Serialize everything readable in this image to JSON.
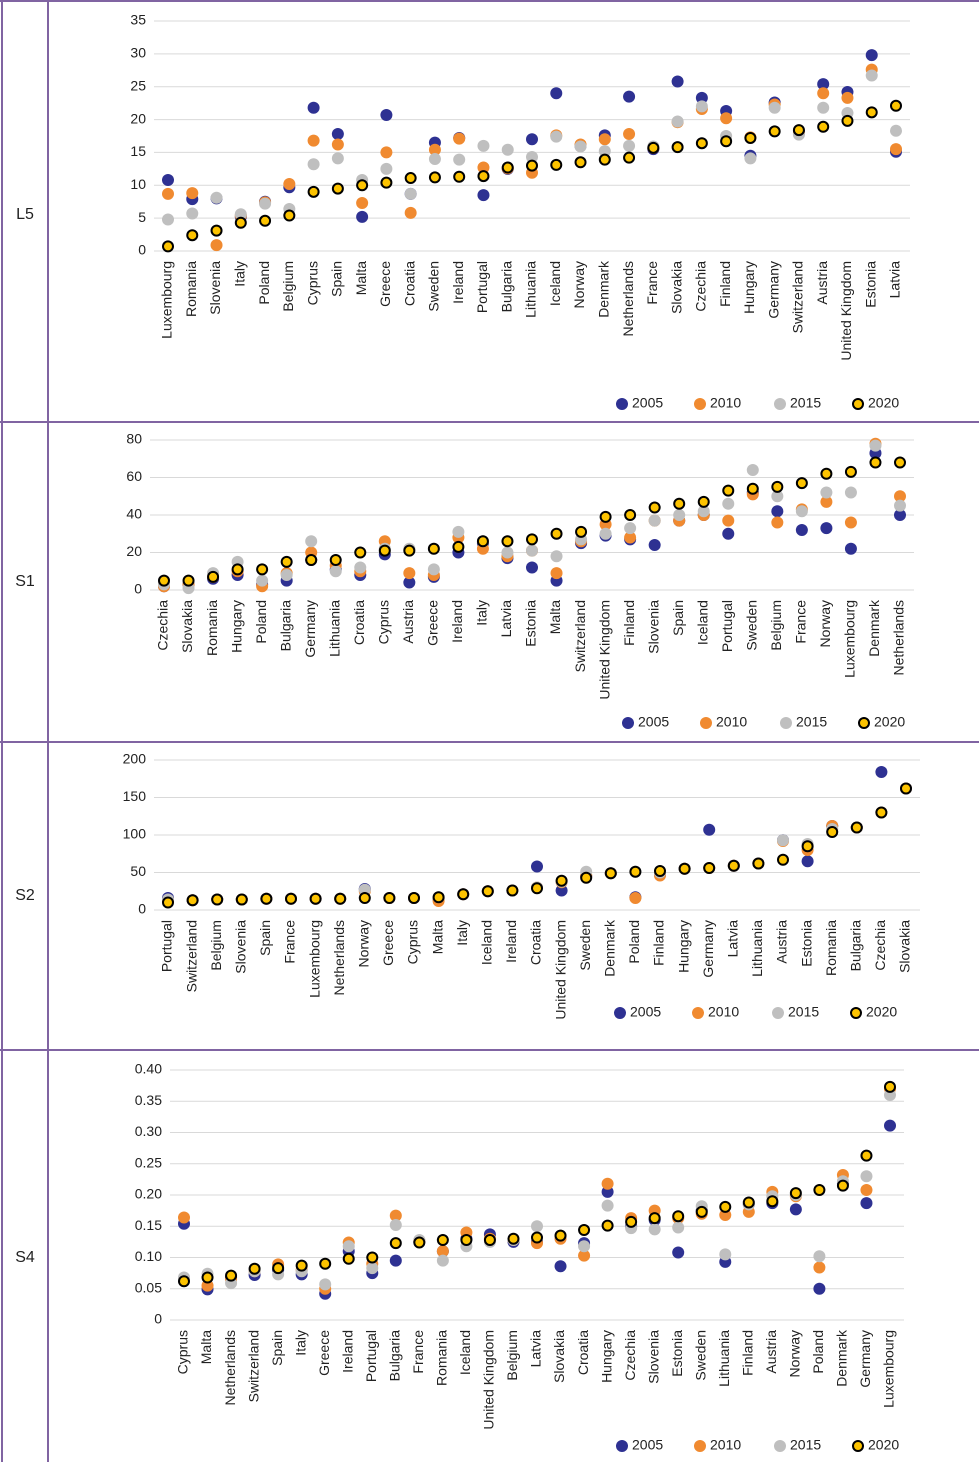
{
  "row_labels": [
    "L5",
    "S1",
    "S2",
    "S4"
  ],
  "chart_data": [
    {
      "type": "dot",
      "categories": [
        "Luxembourg",
        "Romania",
        "Slovenia",
        "Italy",
        "Poland",
        "Belgium",
        "Cyprus",
        "Spain",
        "Malta",
        "Greece",
        "Croatia",
        "Sweden",
        "Ireland",
        "Portugal",
        "Bulgaria",
        "Lithuania",
        "Iceland",
        "Norway",
        "Denmark",
        "Netherlands",
        "France",
        "Slovakia",
        "Czechia",
        "Finland",
        "Hungary",
        "Germany",
        "Switzerland",
        "Austria",
        "United Kingdom",
        "Estonia",
        "Latvia"
      ],
      "series": [
        {
          "name": "2005",
          "color": "#2e3192",
          "values": [
            10.8,
            7.9,
            8.0,
            5.2,
            7.5,
            9.7,
            21.8,
            17.8,
            5.2,
            20.7,
            8.7,
            16.5,
            17.2,
            8.5,
            12.5,
            17.0,
            24.0,
            16.0,
            17.6,
            23.5,
            15.5,
            25.8,
            23.3,
            21.3,
            14.5,
            22.6,
            18.3,
            25.4,
            24.2,
            29.8,
            15.1
          ]
        },
        {
          "name": "2010",
          "color": "#f08a30",
          "values": [
            8.7,
            8.8,
            0.9,
            5.4,
            7.4,
            10.2,
            16.8,
            16.2,
            7.3,
            15.0,
            5.8,
            15.4,
            17.1,
            12.7,
            12.6,
            11.9,
            17.6,
            16.2,
            17.0,
            17.8,
            15.7,
            19.6,
            21.6,
            20.2,
            17.3,
            22.3,
            17.9,
            24.0,
            23.3,
            27.6,
            15.5
          ]
        },
        {
          "name": "2015",
          "color": "#bfbfbf",
          "values": [
            4.8,
            5.7,
            8.1,
            5.6,
            7.2,
            6.4,
            13.2,
            14.1,
            10.8,
            12.5,
            8.7,
            14.0,
            13.9,
            16.0,
            15.4,
            14.3,
            17.4,
            15.9,
            15.2,
            16.0,
            15.9,
            19.7,
            22.0,
            17.5,
            14.1,
            21.8,
            17.7,
            21.8,
            21.0,
            26.7,
            18.3
          ]
        },
        {
          "name": "2020",
          "color": "#fdc300",
          "edgecolor": "#000000",
          "values": [
            0.7,
            2.4,
            3.1,
            4.3,
            4.6,
            5.4,
            9.0,
            9.5,
            10.0,
            10.4,
            11.1,
            11.2,
            11.3,
            11.4,
            12.7,
            13.0,
            13.1,
            13.5,
            13.9,
            14.2,
            15.7,
            15.8,
            16.4,
            16.7,
            17.2,
            18.2,
            18.4,
            18.9,
            19.8,
            21.1,
            22.1
          ]
        }
      ],
      "ylim": [
        0,
        35
      ],
      "yticks": [
        0,
        5,
        10,
        15,
        20,
        25,
        30,
        35
      ],
      "grid": true
    },
    {
      "type": "dot",
      "categories": [
        "Czechia",
        "Slovakia",
        "Romania",
        "Hungary",
        "Poland",
        "Bulgaria",
        "Germany",
        "Lithuania",
        "Croatia",
        "Cyprus",
        "Austria",
        "Greece",
        "Ireland",
        "Italy",
        "Latvia",
        "Estonia",
        "Malta",
        "Switzerland",
        "United Kingdom",
        "Finland",
        "Slovenia",
        "Spain",
        "Iceland",
        "Portugal",
        "Sweden",
        "Belgium",
        "France",
        "Norway",
        "Luxembourg",
        "Denmark",
        "Netherlands"
      ],
      "series": [
        {
          "name": "2005",
          "color": "#2e3192",
          "values": [
            2,
            3,
            6,
            8,
            3,
            5,
            16,
            11,
            8,
            19,
            4,
            7,
            20,
            25,
            17,
            12,
            5,
            25,
            29,
            27,
            24,
            37,
            40,
            30,
            52,
            42,
            32,
            33,
            22,
            73,
            40
          ]
        },
        {
          "name": "2010",
          "color": "#f08a30",
          "values": [
            2,
            3,
            7,
            10,
            2,
            9,
            20,
            13,
            10,
            26,
            9,
            8,
            28,
            22,
            18,
            21,
            9,
            26,
            35,
            28,
            37,
            37,
            40,
            37,
            51,
            36,
            43,
            47,
            36,
            78,
            50
          ]
        },
        {
          "name": "2015",
          "color": "#bfbfbf",
          "values": [
            3,
            1,
            9,
            15,
            5,
            8,
            26,
            10,
            12,
            22,
            22,
            11,
            31,
            26,
            20,
            21,
            18,
            27,
            30,
            33,
            37,
            40,
            42,
            46,
            64,
            50,
            42,
            52,
            52,
            77,
            45
          ]
        },
        {
          "name": "2020",
          "color": "#fdc300",
          "edgecolor": "#000000",
          "values": [
            5,
            5,
            7,
            11,
            11,
            15,
            16,
            16,
            20,
            21,
            21,
            22,
            23,
            26,
            26,
            27,
            30,
            31,
            39,
            40,
            44,
            46,
            47,
            53,
            54,
            55,
            57,
            62,
            63,
            68,
            68
          ]
        }
      ],
      "ylim": [
        0,
        80
      ],
      "yticks": [
        0,
        20,
        40,
        60,
        80
      ],
      "grid": true
    },
    {
      "type": "dot",
      "categories": [
        "Portugal",
        "Switzerland",
        "Belgium",
        "Slovenia",
        "Spain",
        "France",
        "Luxembourg",
        "Netherlands",
        "Norway",
        "Greece",
        "Cyprus",
        "Malta",
        "Italy",
        "Iceland",
        "Ireland",
        "Croatia",
        "United Kingdom",
        "Sweden",
        "Denmark",
        "Poland",
        "Finland",
        "Hungary",
        "Germany",
        "Latvia",
        "Lithuania",
        "Austria",
        "Estonia",
        "Romania",
        "Bulgaria",
        "Czechia",
        "Slovakia"
      ],
      "series": [
        {
          "name": "2005",
          "color": "#2e3192",
          "values": [
            16,
            13,
            14,
            14,
            15,
            15,
            15,
            15,
            28,
            16,
            16,
            15,
            21,
            25,
            26,
            58,
            26,
            45,
            49,
            17,
            47,
            55,
            107,
            59,
            62,
            93,
            65,
            112,
            110,
            184,
            162
          ]
        },
        {
          "name": "2010",
          "color": "#f08a30",
          "values": [
            13,
            13,
            14,
            14,
            15,
            15,
            15,
            15,
            25,
            16,
            16,
            12,
            21,
            25,
            26,
            30,
            37,
            46,
            49,
            16,
            46,
            55,
            56,
            59,
            62,
            92,
            80,
            112,
            110,
            130,
            162
          ]
        },
        {
          "name": "2015",
          "color": "#bfbfbf",
          "values": [
            14,
            13,
            14,
            14,
            15,
            15,
            15,
            15,
            27,
            16,
            16,
            17,
            21,
            25,
            26,
            30,
            38,
            51,
            49,
            51,
            50,
            55,
            56,
            59,
            62,
            93,
            88,
            108,
            110,
            130,
            162
          ]
        },
        {
          "name": "2020",
          "color": "#fdc300",
          "edgecolor": "#000000",
          "values": [
            10,
            13,
            14,
            14,
            15,
            15,
            15,
            15,
            16,
            16,
            16,
            17,
            21,
            25,
            26,
            29,
            39,
            43,
            49,
            51,
            52,
            55,
            56,
            59,
            62,
            67,
            85,
            104,
            110,
            130,
            162
          ]
        }
      ],
      "ylim": [
        0,
        200
      ],
      "yticks": [
        0,
        50,
        100,
        150,
        200
      ],
      "grid": true
    },
    {
      "type": "dot",
      "categories": [
        "Cyprus",
        "Malta",
        "Netherlands",
        "Switzerland",
        "Spain",
        "Italy",
        "Greece",
        "Ireland",
        "Portugal",
        "Bulgaria",
        "France",
        "Romania",
        "Iceland",
        "United Kingdom",
        "Belgium",
        "Latvia",
        "Slovakia",
        "Croatia",
        "Hungary",
        "Czechia",
        "Slovenia",
        "Estonia",
        "Sweden",
        "Lithuania",
        "Finland",
        "Austria",
        "Norway",
        "Poland",
        "Denmark",
        "Germany",
        "Luxembourg"
      ],
      "series": [
        {
          "name": "2005",
          "color": "#2e3192",
          "values": [
            0.154,
            0.049,
            0.068,
            0.072,
            0.08,
            0.073,
            0.042,
            0.11,
            0.075,
            0.095,
            0.125,
            0.11,
            0.13,
            0.137,
            0.125,
            0.125,
            0.086,
            0.123,
            0.205,
            0.15,
            0.16,
            0.108,
            0.175,
            0.093,
            0.185,
            0.187,
            0.177,
            0.05,
            0.218,
            0.187,
            0.311
          ]
        },
        {
          "name": "2010",
          "color": "#f08a30",
          "values": [
            0.164,
            0.055,
            0.065,
            0.078,
            0.089,
            0.08,
            0.05,
            0.124,
            0.09,
            0.167,
            0.127,
            0.11,
            0.14,
            0.13,
            0.128,
            0.123,
            0.13,
            0.103,
            0.218,
            0.163,
            0.175,
            0.163,
            0.17,
            0.168,
            0.173,
            0.205,
            0.198,
            0.084,
            0.232,
            0.208,
            0.37
          ]
        },
        {
          "name": "2015",
          "color": "#bfbfbf",
          "values": [
            0.068,
            0.074,
            0.059,
            0.078,
            0.073,
            0.078,
            0.057,
            0.118,
            0.083,
            0.152,
            0.128,
            0.095,
            0.118,
            0.125,
            0.128,
            0.15,
            0.135,
            0.118,
            0.183,
            0.147,
            0.145,
            0.148,
            0.182,
            0.105,
            0.185,
            0.198,
            0.2,
            0.102,
            0.222,
            0.23,
            0.36
          ]
        },
        {
          "name": "2020",
          "color": "#fdc300",
          "edgecolor": "#000000",
          "values": [
            0.062,
            0.068,
            0.071,
            0.082,
            0.083,
            0.087,
            0.09,
            0.098,
            0.1,
            0.123,
            0.124,
            0.128,
            0.128,
            0.128,
            0.13,
            0.132,
            0.135,
            0.144,
            0.151,
            0.157,
            0.163,
            0.166,
            0.173,
            0.181,
            0.188,
            0.19,
            0.203,
            0.208,
            0.215,
            0.263,
            0.373
          ]
        }
      ],
      "ylim": [
        0,
        0.4
      ],
      "yticks": [
        0,
        0.05,
        {
          "value": 0.1,
          "label": "0.10"
        },
        0.15,
        {
          "value": 0.2,
          "label": "0.20"
        },
        0.25,
        {
          "value": 0.3,
          "label": "0.30"
        },
        0.35,
        {
          "value": 0.4,
          "label": "0.40"
        }
      ],
      "grid": true
    }
  ]
}
